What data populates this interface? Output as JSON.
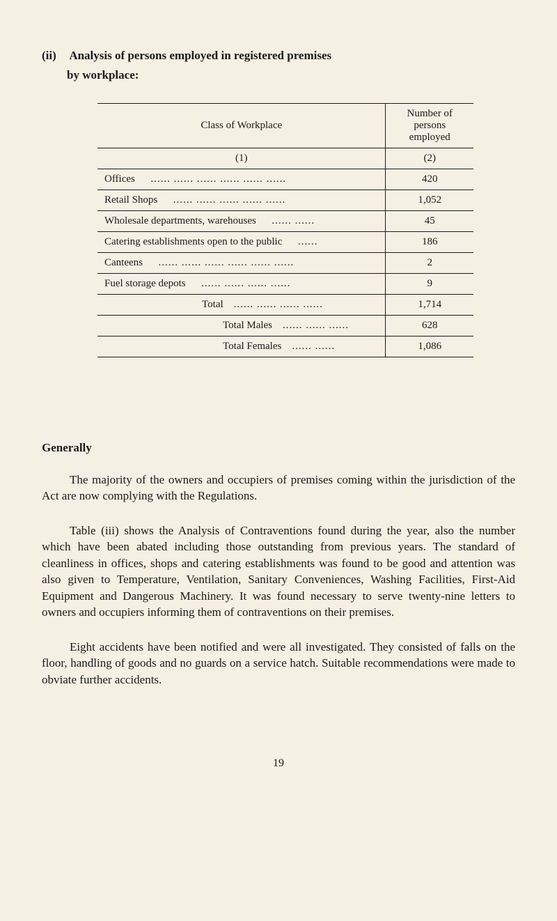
{
  "heading": {
    "item_number": "(ii)",
    "title": "Analysis of persons employed in registered premises",
    "subtitle": "by workplace:"
  },
  "table": {
    "header": {
      "col1": "Class of Workplace",
      "col2": "Number of\npersons\nemployed"
    },
    "subheader": {
      "col1": "(1)",
      "col2": "(2)"
    },
    "rows": [
      {
        "label": "Offices",
        "value": "420"
      },
      {
        "label": "Retail Shops",
        "value": "1,052"
      },
      {
        "label": "Wholesale departments, warehouses",
        "value": "45"
      },
      {
        "label": "Catering establishments open to the public",
        "value": "186"
      },
      {
        "label": "Canteens",
        "value": "2"
      },
      {
        "label": "Fuel storage depots",
        "value": "9"
      }
    ],
    "totals": [
      {
        "label": "Total",
        "value": "1,714"
      },
      {
        "label": "Total Males",
        "value": "628"
      },
      {
        "label": "Total Females",
        "value": "1,086"
      }
    ]
  },
  "generally": {
    "title": "Generally",
    "p1": "The majority of the owners and occupiers of premises coming within the jurisdiction of the Act are now complying with the Regulations.",
    "p2": "Table (iii) shows the Analysis of Contraventions found during the year, also the number which have been abated including those outstanding from previous years. The standard of cleanliness in offices, shops and catering establishments was found to be good and attention was also given to Temperature, Ventilation, Sanitary Conveniences, Washing Facilities, First-Aid Equipment and Dangerous Machinery. It was found necessary to serve twenty-nine letters to owners and occupiers informing them of contraventions on their premises.",
    "p3": "Eight accidents have been notified and were all investigated. They consisted of falls on the floor, handling of goods and no guards on a service hatch. Suitable recommendations were made to obviate further accidents."
  },
  "page_number": "19"
}
